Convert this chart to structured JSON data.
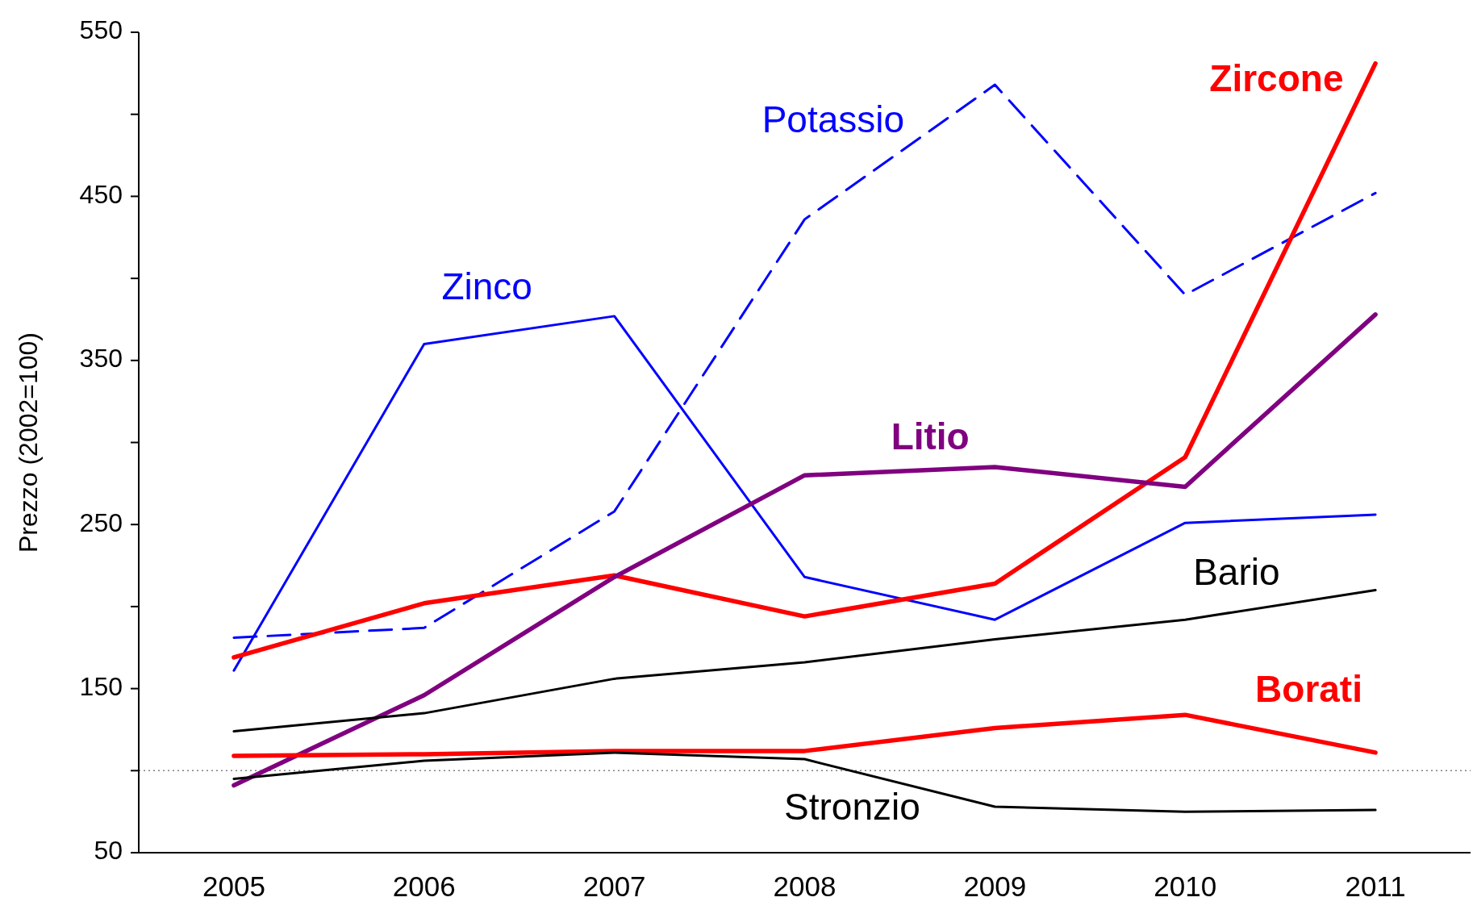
{
  "chart_data": {
    "type": "line",
    "ylabel": "Prezzo (2002=100)",
    "categories": [
      "2005",
      "2006",
      "2007",
      "2008",
      "2009",
      "2010",
      "2011"
    ],
    "ylim": [
      50,
      550
    ],
    "yticks": [
      50,
      {
        "value": 100,
        "label": null
      },
      150,
      {
        "value": 200,
        "label": null
      },
      250,
      {
        "value": 300,
        "label": null
      },
      350,
      {
        "value": 400,
        "label": null
      },
      450,
      {
        "value": 500,
        "label": null
      },
      550
    ],
    "grid": false,
    "ref_lines": [
      {
        "axis": "y",
        "value": 100,
        "color": "#808080",
        "line_style": "dotted"
      }
    ],
    "series": [
      {
        "name": "Zinco",
        "color": "#0000ff",
        "values": [
          161,
          360,
          377,
          218,
          192,
          251,
          256
        ]
      },
      {
        "name": "Potassio",
        "color": "#0000ff",
        "line_style": "dashed",
        "values": [
          181,
          187,
          258,
          436,
          518,
          390,
          452
        ]
      },
      {
        "name": "Zircone",
        "color": "#ff0000",
        "values": [
          169,
          202,
          219,
          194,
          214,
          291,
          531
        ]
      },
      {
        "name": "Litio",
        "color": "#800080",
        "values": [
          91,
          146,
          218,
          280,
          285,
          273,
          378
        ]
      },
      {
        "name": "Bario",
        "color": "#000000",
        "values": [
          124,
          135,
          156,
          166,
          180,
          192,
          210
        ]
      },
      {
        "name": "Borati",
        "color": "#ff0000",
        "values": [
          109,
          110,
          112,
          112,
          126,
          134,
          111
        ]
      },
      {
        "name": "Stronzio",
        "color": "#000000",
        "values": [
          95,
          106,
          111,
          107,
          78,
          75,
          76
        ]
      }
    ]
  }
}
